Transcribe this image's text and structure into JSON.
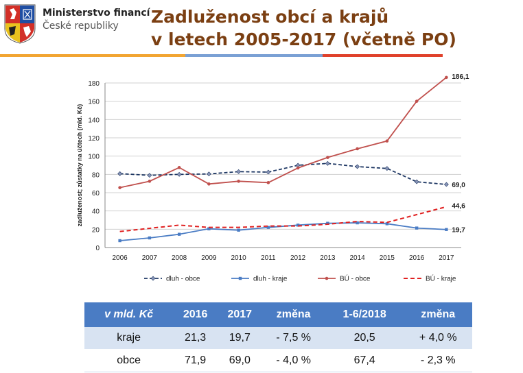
{
  "header": {
    "ministry_line1": "Ministerstvo financí",
    "ministry_line2": "České republiky",
    "title_line1": "Zadluženost obcí a krajů",
    "title_line2": "v letech 2005-2017 (včetně PO)",
    "stripe_colors": [
      "#f2a531",
      "#7aa0d4",
      "#e0412b"
    ]
  },
  "chart_data": {
    "type": "line",
    "x": [
      "2006",
      "2007",
      "2008",
      "2009",
      "2010",
      "2011",
      "2012",
      "2013",
      "2014",
      "2015",
      "2016",
      "2017"
    ],
    "ylabel": "zadluženost; zůstatky na účtech (mld. Kč)",
    "ylim": [
      0,
      180
    ],
    "yticks": [
      0,
      20,
      40,
      60,
      80,
      100,
      120,
      140,
      160,
      180
    ],
    "legend_position": "bottom",
    "series": [
      {
        "name": "dluh - obce",
        "color": "#1f3864",
        "style": "dashed-diamond",
        "values": [
          80.8,
          79.0,
          80.0,
          80.5,
          83.0,
          82.5,
          90.0,
          92.0,
          88.5,
          86.5,
          71.9,
          69.0
        ]
      },
      {
        "name": "dluh - kraje",
        "color": "#4a7cc4",
        "style": "solid-square",
        "values": [
          7.5,
          10.5,
          14.5,
          20.5,
          19.0,
          22.0,
          24.5,
          26.5,
          27.0,
          26.0,
          21.3,
          19.7
        ]
      },
      {
        "name": "BÚ - obce",
        "color": "#c0504d",
        "style": "solid-circle",
        "values": [
          65.5,
          72.5,
          87.5,
          69.5,
          72.5,
          71.0,
          87.0,
          98.5,
          108.0,
          116.5,
          160.0,
          186.1
        ]
      },
      {
        "name": "BÚ - kraje",
        "color": "#e02020",
        "style": "dashed",
        "values": [
          17.5,
          21.0,
          24.5,
          22.0,
          22.0,
          23.5,
          23.5,
          25.5,
          28.5,
          27.5,
          36.0,
          44.6
        ]
      }
    ],
    "annotations": [
      "186,1",
      "69,0",
      "44,6",
      "19,7"
    ]
  },
  "table": {
    "headers": [
      "v mld. Kč",
      "2016",
      "2017",
      "změna",
      "1-6/2018",
      "změna"
    ],
    "rows": [
      [
        "kraje",
        "21,3",
        "19,7",
        "- 7,5 %",
        "20,5",
        "+ 4,0 %"
      ],
      [
        "obce",
        "71,9",
        "69,0",
        "- 4,0 %",
        "67,4",
        "- 2,3 %"
      ]
    ]
  }
}
